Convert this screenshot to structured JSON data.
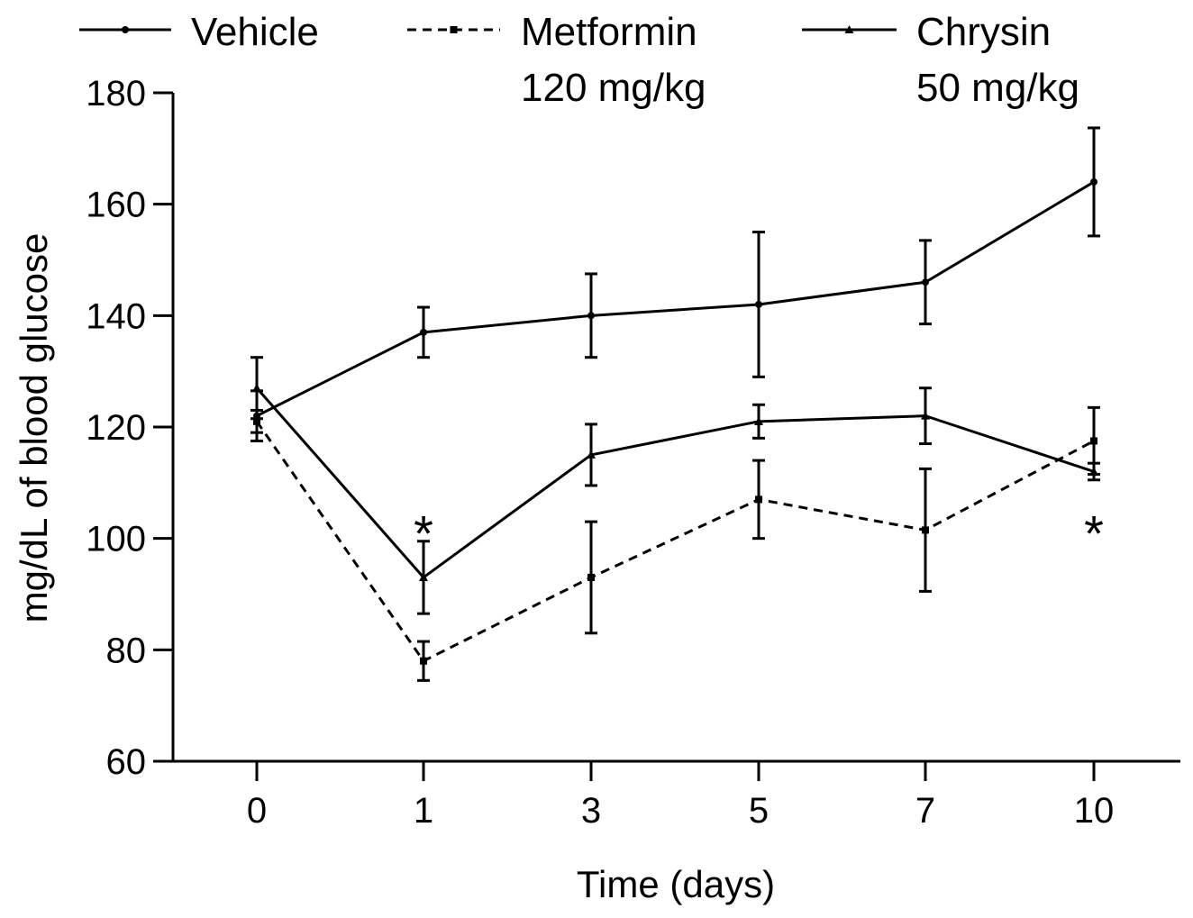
{
  "chart_data": {
    "type": "line",
    "title": "",
    "xlabel": "Time (days)",
    "ylabel": "mg/dL of blood glucose",
    "categories": [
      "0",
      "1",
      "3",
      "5",
      "7",
      "10"
    ],
    "ylim": [
      60,
      180
    ],
    "yticks": [
      60,
      80,
      100,
      120,
      140,
      160,
      180
    ],
    "grid": false,
    "legend_position": "top",
    "series": [
      {
        "name": "Vehicle",
        "label_lines": [
          "Vehicle"
        ],
        "line_style": "solid",
        "marker": "circle",
        "values": [
          122,
          137,
          140,
          142,
          146,
          164
        ],
        "errors": [
          4.5,
          4.5,
          7.5,
          13,
          7.5,
          9.7
        ]
      },
      {
        "name": "Metformin 120 mg/kg",
        "label_lines": [
          "Metformin",
          "120 mg/kg"
        ],
        "line_style": "dashed",
        "marker": "square",
        "values": [
          121,
          78,
          93,
          107,
          101.5,
          117.5
        ],
        "errors": [
          2,
          3.5,
          10,
          7,
          11,
          6
        ]
      },
      {
        "name": "Chrysin 50 mg/kg",
        "label_lines": [
          "Chrysin",
          "50 mg/kg"
        ],
        "line_style": "solid",
        "marker": "triangle",
        "values": [
          127,
          93,
          115,
          121,
          122,
          112
        ],
        "errors": [
          5.5,
          6.5,
          5.5,
          3,
          5,
          1.5
        ]
      }
    ],
    "annotations": [
      {
        "text": "*",
        "category": "1",
        "y": 102
      },
      {
        "text": "*",
        "category": "10",
        "y": 102
      }
    ]
  }
}
